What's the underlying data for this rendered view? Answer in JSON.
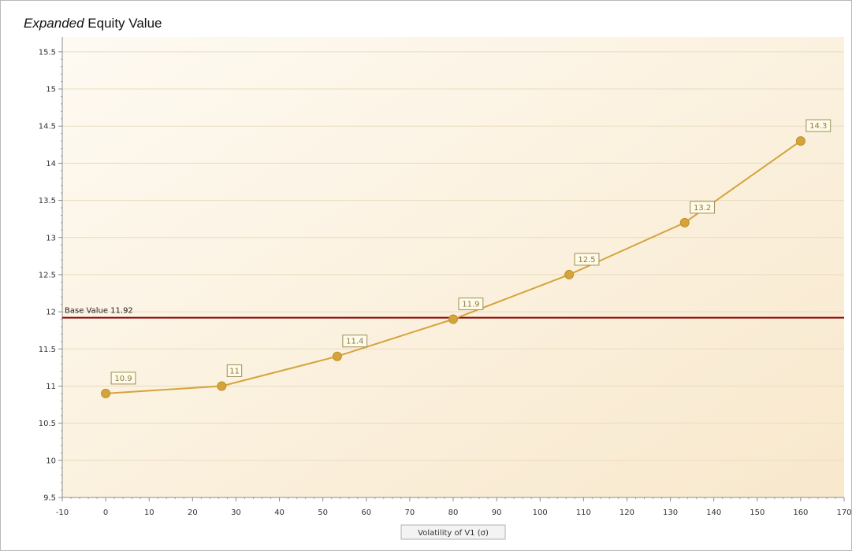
{
  "title": {
    "italic": "Expanded",
    "rest": " Equity Value"
  },
  "chart_data": {
    "type": "line",
    "x": [
      0,
      26.7,
      53.3,
      80,
      106.7,
      133.3,
      160
    ],
    "y": [
      10.9,
      11,
      11.4,
      11.9,
      12.5,
      13.2,
      14.3
    ],
    "point_labels": [
      "10.9",
      "11",
      "11.4",
      "11.9",
      "12.5",
      "13.2",
      "14.3"
    ],
    "xlabel": "Volatility of V1 (σ)",
    "ylabel": "",
    "xlim": [
      -10,
      170
    ],
    "ylim": [
      9.5,
      15.7
    ],
    "x_ticks": [
      -10,
      0,
      10,
      20,
      30,
      40,
      50,
      60,
      70,
      80,
      90,
      100,
      110,
      120,
      130,
      140,
      150,
      160,
      170
    ],
    "y_ticks": [
      9.5,
      10,
      10.5,
      11,
      11.5,
      12,
      12.5,
      13,
      13.5,
      14,
      14.5,
      15,
      15.5
    ],
    "reference_line": {
      "label": "Base Value 11.92",
      "value": 11.92,
      "color": "#8b0000"
    },
    "series_color": "#d4a43a",
    "grid": true,
    "legend": "none",
    "plot_background": "#fbf0dd"
  }
}
